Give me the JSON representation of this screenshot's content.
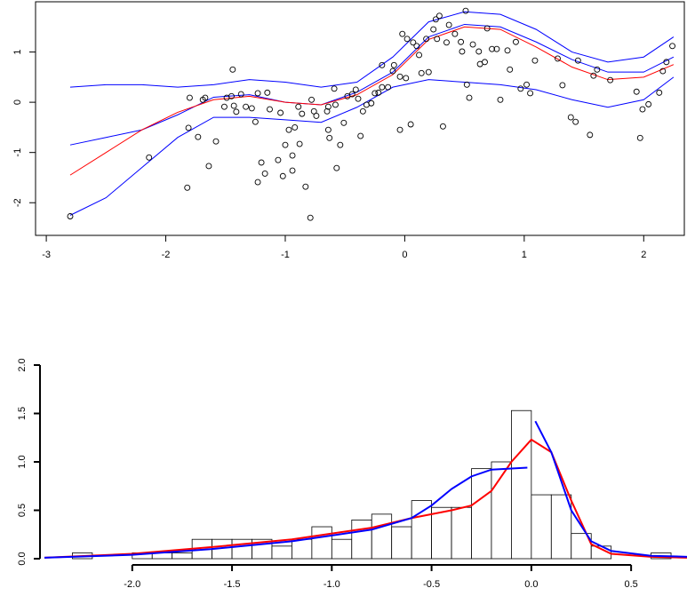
{
  "chart_data": [
    {
      "type": "scatter",
      "xlim": [
        -3.09,
        2.34
      ],
      "ylim": [
        -2.65,
        2.0
      ],
      "xticks": [
        -3,
        -2,
        -1,
        0,
        1,
        2
      ],
      "yticks": [
        -2,
        -1,
        0,
        1
      ],
      "points": {
        "color": "#000000",
        "x": [
          -2.8,
          -2.14,
          -1.82,
          -1.81,
          -1.8,
          -1.73,
          -1.69,
          -1.67,
          -1.64,
          -1.58,
          -1.51,
          -1.49,
          -1.45,
          -1.43,
          -1.41,
          -1.44,
          -1.37,
          -1.33,
          -1.28,
          -1.25,
          -1.23,
          -1.2,
          -1.23,
          -1.17,
          -1.15,
          -1.13,
          -1.06,
          -1.04,
          -1.02,
          -1.0,
          -0.97,
          -0.94,
          -0.94,
          -0.92,
          -0.89,
          -0.88,
          -0.86,
          -0.83,
          -0.79,
          -0.78,
          -0.76,
          -0.74,
          -0.65,
          -0.64,
          -0.64,
          -0.63,
          -0.59,
          -0.58,
          -0.57,
          -0.54,
          -0.51,
          -0.48,
          -0.44,
          -0.41,
          -0.39,
          -0.37,
          -0.35,
          -0.32,
          -0.28,
          -0.25,
          -0.22,
          -0.19,
          -0.19,
          -0.14,
          -0.1,
          -0.09,
          -0.04,
          -0.04,
          -0.02,
          0.01,
          0.02,
          0.05,
          0.07,
          0.1,
          0.12,
          0.14,
          0.18,
          0.2,
          0.24,
          0.26,
          0.27,
          0.29,
          0.32,
          0.35,
          0.37,
          0.42,
          0.47,
          0.48,
          0.51,
          0.52,
          0.54,
          0.57,
          0.62,
          0.63,
          0.67,
          0.69,
          0.73,
          0.77,
          0.8,
          0.86,
          0.88,
          0.93,
          0.97,
          1.02,
          1.05,
          1.09,
          1.28,
          1.32,
          1.39,
          1.43,
          1.45,
          1.55,
          1.58,
          1.61,
          1.72,
          1.94,
          1.97,
          1.99,
          2.04,
          2.13,
          2.16,
          2.19,
          2.24
        ],
        "y": [
          -2.27,
          -1.1,
          -1.7,
          -0.51,
          0.09,
          -0.69,
          0.05,
          0.09,
          -1.27,
          -0.78,
          -0.09,
          0.09,
          0.12,
          -0.07,
          -0.19,
          0.65,
          0.16,
          -0.09,
          -0.12,
          -0.39,
          0.18,
          -1.2,
          -1.59,
          -1.42,
          0.19,
          -0.14,
          -1.15,
          -0.21,
          -1.47,
          -0.85,
          -0.55,
          -1.06,
          -1.36,
          -0.5,
          -0.09,
          -0.83,
          -0.23,
          -1.68,
          -2.3,
          0.05,
          -0.18,
          -0.27,
          -0.18,
          -0.55,
          -0.09,
          -0.71,
          0.27,
          -0.05,
          -1.31,
          -0.85,
          -0.41,
          0.12,
          0.16,
          0.25,
          0.07,
          -0.67,
          -0.18,
          -0.05,
          -0.02,
          0.18,
          0.19,
          0.3,
          0.74,
          0.3,
          0.62,
          0.74,
          -0.55,
          0.51,
          1.36,
          0.48,
          1.26,
          -0.44,
          1.19,
          1.12,
          0.94,
          0.58,
          1.26,
          0.6,
          1.45,
          1.65,
          1.26,
          1.72,
          -0.48,
          1.19,
          1.54,
          1.36,
          1.2,
          1.01,
          1.82,
          0.35,
          0.09,
          1.15,
          1.01,
          0.76,
          0.8,
          1.47,
          1.06,
          1.06,
          0.05,
          1.03,
          0.65,
          1.2,
          0.27,
          0.35,
          0.18,
          0.83,
          0.87,
          0.34,
          -0.3,
          -0.39,
          0.83,
          -0.65,
          0.53,
          0.65,
          0.44,
          0.21,
          -0.71,
          -0.14,
          -0.04,
          0.19,
          0.62,
          0.8,
          1.12
        ]
      },
      "series": [
        {
          "color": "#0000ff",
          "x": [
            -2.8,
            -2.5,
            -2.2,
            -1.9,
            -1.6,
            -1.3,
            -1.0,
            -0.7,
            -0.4,
            -0.1,
            0.2,
            0.5,
            0.8,
            1.1,
            1.4,
            1.7,
            2.0,
            2.25
          ],
          "values": [
            0.3,
            0.35,
            0.35,
            0.3,
            0.35,
            0.45,
            0.4,
            0.3,
            0.4,
            0.9,
            1.6,
            1.8,
            1.75,
            1.45,
            1.0,
            0.8,
            0.9,
            1.3
          ]
        },
        {
          "color": "#0000ff",
          "x": [
            -2.8,
            -2.5,
            -2.2,
            -1.9,
            -1.6,
            -1.3,
            -1.0,
            -0.7,
            -0.4,
            -0.1,
            0.2,
            0.5,
            0.8,
            1.1,
            1.4,
            1.7,
            2.0,
            2.25
          ],
          "values": [
            -0.85,
            -0.7,
            -0.55,
            -0.25,
            0.1,
            0.15,
            0.0,
            -0.05,
            0.2,
            0.6,
            1.3,
            1.55,
            1.5,
            1.2,
            0.85,
            0.6,
            0.6,
            0.9
          ]
        },
        {
          "color": "#0000ff",
          "x": [
            -2.8,
            -2.5,
            -2.2,
            -1.9,
            -1.6,
            -1.3,
            -1.0,
            -0.7,
            -0.4,
            -0.1,
            0.2,
            0.5,
            0.8,
            1.1,
            1.4,
            1.7,
            2.0,
            2.25
          ],
          "values": [
            -2.25,
            -1.9,
            -1.3,
            -0.7,
            -0.3,
            -0.3,
            -0.35,
            -0.4,
            -0.1,
            0.3,
            0.45,
            0.4,
            0.35,
            0.25,
            0.05,
            -0.1,
            0.05,
            0.5
          ]
        },
        {
          "color": "#ff0000",
          "x": [
            -2.8,
            -2.5,
            -2.2,
            -1.9,
            -1.6,
            -1.3,
            -1.0,
            -0.7,
            -0.4,
            -0.1,
            0.2,
            0.5,
            0.8,
            1.1,
            1.4,
            1.7,
            2.0,
            2.25
          ],
          "values": [
            -1.45,
            -1.0,
            -0.55,
            -0.2,
            0.05,
            0.12,
            0.0,
            -0.05,
            0.15,
            0.55,
            1.25,
            1.5,
            1.45,
            1.1,
            0.7,
            0.45,
            0.5,
            0.75
          ]
        }
      ]
    },
    {
      "type": "histogram",
      "xlim": [
        -2.44,
        0.78
      ],
      "ylim": [
        0,
        2.0
      ],
      "xticks": [
        {
          "value": -2.0,
          "label": "-2.0"
        },
        -1.5,
        {
          "value": -1.0,
          "label": "-1.0"
        },
        -0.5,
        {
          "value": 0.0,
          "label": "0.0"
        },
        0.5
      ],
      "yticks": [
        {
          "value": 0.0,
          "label": "0.0"
        },
        0.5,
        {
          "value": 1.0,
          "label": "1.0"
        },
        1.5,
        {
          "value": 2.0,
          "label": "2.0"
        }
      ],
      "bins": [
        -2.3,
        -2.2,
        -2.1,
        -2.0,
        -1.9,
        -1.8,
        -1.7,
        -1.6,
        -1.5,
        -1.4,
        -1.3,
        -1.2,
        -1.1,
        -1.0,
        -0.9,
        -0.8,
        -0.7,
        -0.6,
        -0.5,
        -0.4,
        -0.3,
        -0.2,
        -0.1,
        0.0,
        0.1,
        0.2,
        0.3,
        0.4,
        0.5,
        0.6,
        0.7
      ],
      "counts": [
        0.06,
        0,
        0,
        0.06,
        0.06,
        0.06,
        0.2,
        0.2,
        0.2,
        0.2,
        0.13,
        0.2,
        0.33,
        0.2,
        0.4,
        0.46,
        0.33,
        0.6,
        0.53,
        0.53,
        0.93,
        1.0,
        1.53,
        0.66,
        0.66,
        0.26,
        0.13,
        0,
        0,
        0.06
      ],
      "color": "#ffffff",
      "series": [
        {
          "color": "#ff0000",
          "x": [
            -2.44,
            -2.0,
            -1.6,
            -1.2,
            -0.8,
            -0.6,
            -0.4,
            -0.3,
            -0.2,
            -0.1,
            0.0,
            0.1,
            0.2,
            0.3,
            0.4,
            0.6,
            0.78
          ],
          "values": [
            0.01,
            0.05,
            0.12,
            0.2,
            0.32,
            0.42,
            0.5,
            0.55,
            0.7,
            1.0,
            1.23,
            1.1,
            0.6,
            0.15,
            0.05,
            0.02,
            0.01
          ]
        },
        {
          "color": "#0000ff",
          "x": [
            -2.44,
            -2.0,
            -1.6,
            -1.2,
            -0.8,
            -0.6,
            -0.5,
            -0.4,
            -0.3,
            -0.2,
            -0.02,
            0.0,
            0.02,
            0.1,
            0.2,
            0.3,
            0.4,
            0.6,
            0.78
          ],
          "values": [
            0.01,
            0.04,
            0.1,
            0.18,
            0.3,
            0.42,
            0.55,
            0.72,
            0.85,
            0.92,
            0.94,
            null,
            1.42,
            1.1,
            0.5,
            0.18,
            0.08,
            0.03,
            0.02
          ]
        }
      ]
    }
  ]
}
